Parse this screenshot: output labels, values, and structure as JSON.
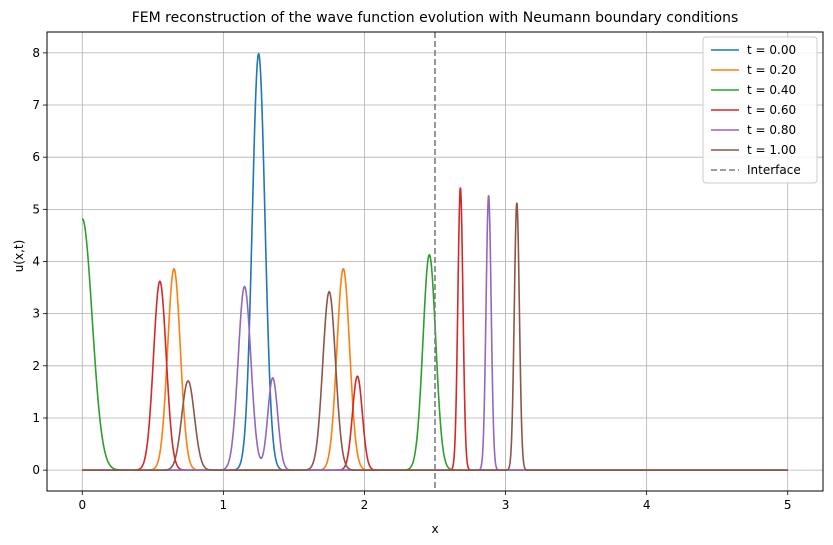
{
  "chart_data": {
    "type": "line",
    "title": "FEM reconstruction of the wave function evolution with Neumann boundary conditions",
    "xlabel": "x",
    "ylabel": "u(x,t)",
    "xlim": [
      -0.25,
      5.25
    ],
    "ylim": [
      -0.4,
      8.4
    ],
    "xticks": [
      0,
      1,
      2,
      3,
      4,
      5
    ],
    "yticks": [
      0,
      1,
      2,
      3,
      4,
      5,
      6,
      7,
      8
    ],
    "grid": true,
    "legend_position": "top-right",
    "x_domain": [
      0,
      5
    ],
    "series": [
      {
        "name": "t = 0.00",
        "color": "#1f77b4",
        "peaks": [
          {
            "center": 1.25,
            "amp": 7.98,
            "width": 0.045
          }
        ]
      },
      {
        "name": "t = 0.20",
        "color": "#ff7f0e",
        "peaks": [
          {
            "center": 0.65,
            "amp": 3.86,
            "width": 0.045
          },
          {
            "center": 1.85,
            "amp": 3.86,
            "width": 0.045
          }
        ]
      },
      {
        "name": "t = 0.40",
        "color": "#2ca02c",
        "peaks": [
          {
            "center": 0.0,
            "amp": 4.82,
            "width": 0.07
          },
          {
            "center": 2.46,
            "amp": 4.13,
            "width": 0.045
          }
        ]
      },
      {
        "name": "t = 0.60",
        "color": "#d62728",
        "peaks": [
          {
            "center": 0.55,
            "amp": 3.62,
            "width": 0.045
          },
          {
            "center": 1.95,
            "amp": 1.8,
            "width": 0.035
          },
          {
            "center": 2.68,
            "amp": 5.42,
            "width": 0.018
          }
        ]
      },
      {
        "name": "t = 0.80",
        "color": "#9467bd",
        "peaks": [
          {
            "center": 1.15,
            "amp": 3.52,
            "width": 0.045
          },
          {
            "center": 1.35,
            "amp": 1.77,
            "width": 0.035
          },
          {
            "center": 2.88,
            "amp": 5.27,
            "width": 0.018
          }
        ]
      },
      {
        "name": "t = 1.00",
        "color": "#8c564b",
        "peaks": [
          {
            "center": 0.75,
            "amp": 1.71,
            "width": 0.045
          },
          {
            "center": 1.75,
            "amp": 3.42,
            "width": 0.045
          },
          {
            "center": 3.08,
            "amp": 5.13,
            "width": 0.018
          }
        ]
      }
    ],
    "reference_lines": [
      {
        "name": "Interface",
        "orientation": "vertical",
        "x": 2.5,
        "color": "#7f7f7f",
        "style": "dashed"
      }
    ]
  }
}
